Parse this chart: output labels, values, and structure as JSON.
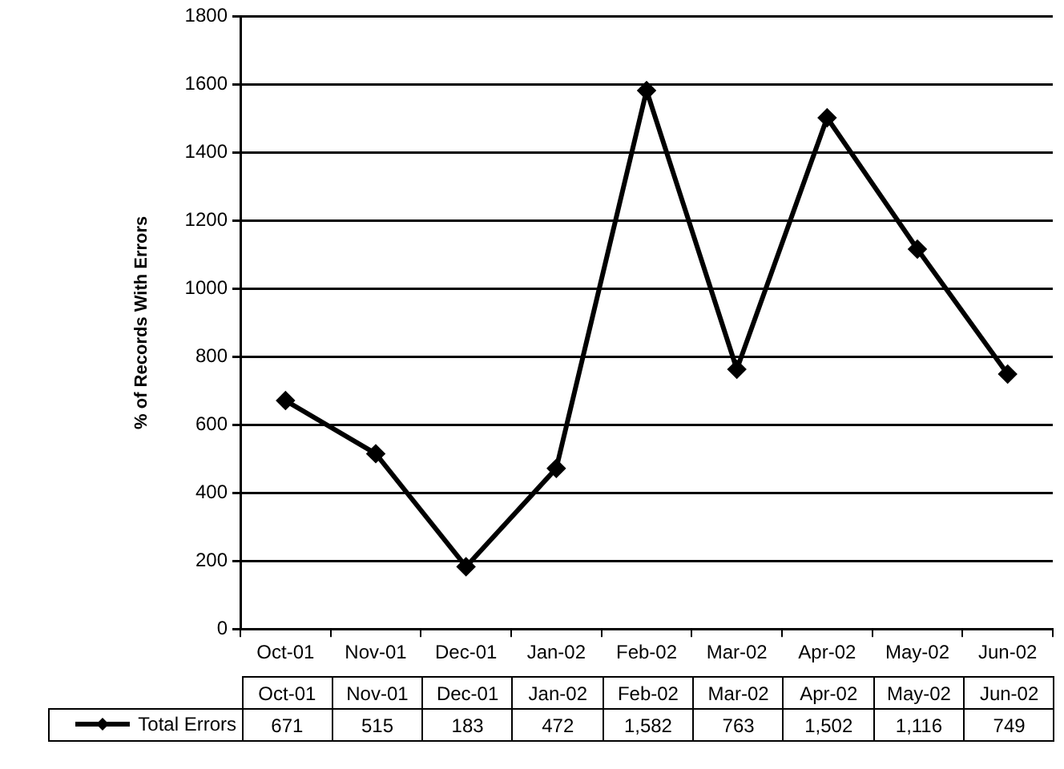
{
  "chart_data": {
    "type": "line",
    "ylabel": "% of Records With Errors",
    "categories": [
      "Oct-01",
      "Nov-01",
      "Dec-01",
      "Jan-02",
      "Feb-02",
      "Mar-02",
      "Apr-02",
      "May-02",
      "Jun-02"
    ],
    "series": [
      {
        "name": "Total Errors",
        "color": "#000000",
        "values": [
          671,
          515,
          183,
          472,
          1582,
          763,
          1502,
          1116,
          749
        ],
        "value_labels": [
          "671",
          "515",
          "183",
          "472",
          "1,582",
          "763",
          "1,502",
          "1,116",
          "749"
        ]
      }
    ],
    "ylim": [
      0,
      1800
    ],
    "yticks": [
      0,
      200,
      400,
      600,
      800,
      1000,
      1200,
      1400,
      1600,
      1800
    ],
    "grid": "y",
    "legend": "bottom",
    "marker": "diamond",
    "line_style": "solid"
  }
}
